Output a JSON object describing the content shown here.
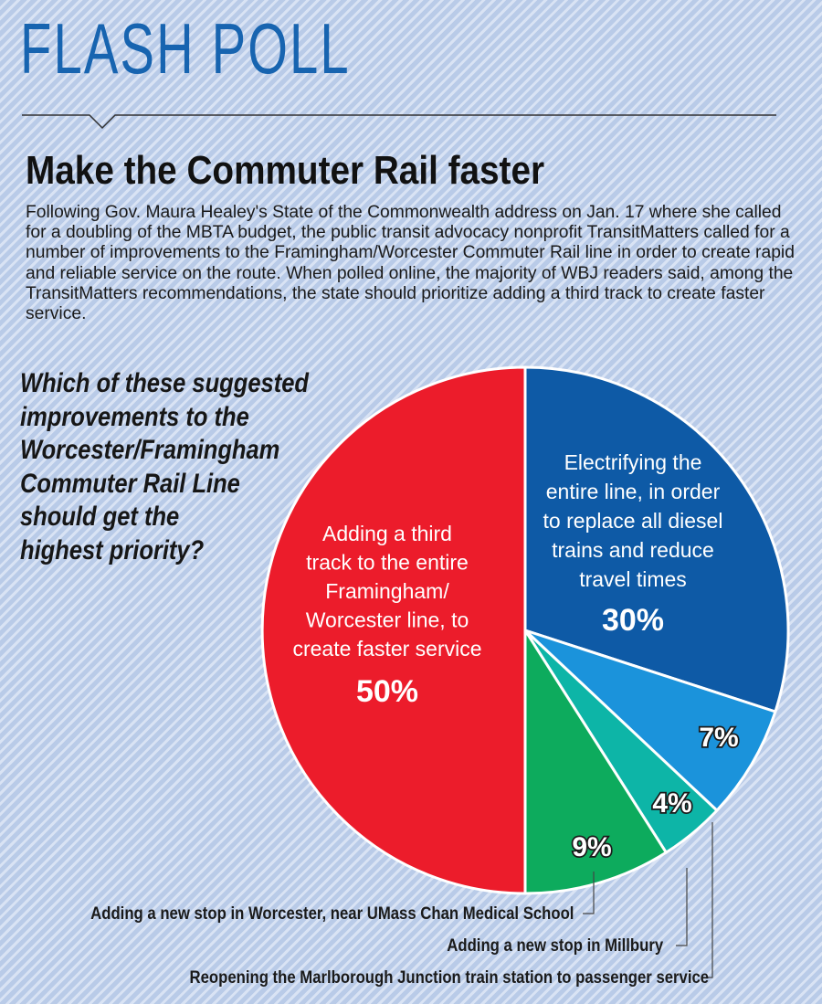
{
  "header": {
    "label": "FLASH POLL"
  },
  "headline": "Make the Commuter Rail faster",
  "intro": "Following Gov. Maura Healey's State of the Commonwealth address on Jan. 17 where she called for a doubling of the MBTA budget, the public transit advocacy nonprofit TransitMatters called for a number of improvements to the Framingham/Worcester Commuter Rail line in order to create rapid and reliable service on the route. When polled online, the majority of WBJ readers said, among the TransitMatters recommendations, the state should prioritize adding a third track to create faster service.",
  "question_lines": [
    "Which of these suggested",
    "improvements to the",
    "Worcester/Framingham",
    "Commuter Rail Line",
    "should get the",
    "highest priority?"
  ],
  "colors": {
    "header": "#1764b0",
    "background": "#b9cbe8",
    "stripe": "#d9e3f4"
  },
  "chart_data": {
    "type": "pie",
    "title": "Which of these suggested improvements to the Worcester/Framingham Commuter Rail Line should get the highest priority?",
    "unit": "%",
    "slices": [
      {
        "key": "third-track",
        "label": "Adding a third track to the entire Framingham/Worcester line, to create faster service",
        "label_lines": [
          "Adding a third",
          "track to the entire",
          "Framingham/",
          "Worcester line, to",
          "create faster service"
        ],
        "value": 50,
        "value_label": "50%",
        "color": "#ec1c2b"
      },
      {
        "key": "electrify",
        "label": "Electrifying the entire line, in order to replace all diesel trains and reduce travel times",
        "label_lines": [
          "Electrifying the",
          "entire line, in order",
          "to replace all diesel",
          "trains and reduce",
          "travel times"
        ],
        "value": 30,
        "value_label": "30%",
        "color": "#0e5aa6"
      },
      {
        "key": "marlborough",
        "label": "Reopening the Marlborough Junction train station to passenger service",
        "value": 7,
        "value_label": "7%",
        "color": "#1b93db"
      },
      {
        "key": "millbury",
        "label": "Adding a new stop in Millbury",
        "value": 4,
        "value_label": "4%",
        "color": "#0db5a7"
      },
      {
        "key": "umass",
        "label": "Adding a new stop in Worcester, near UMass Chan Medical School",
        "value": 9,
        "value_label": "9%",
        "color": "#0dab5d"
      }
    ]
  }
}
